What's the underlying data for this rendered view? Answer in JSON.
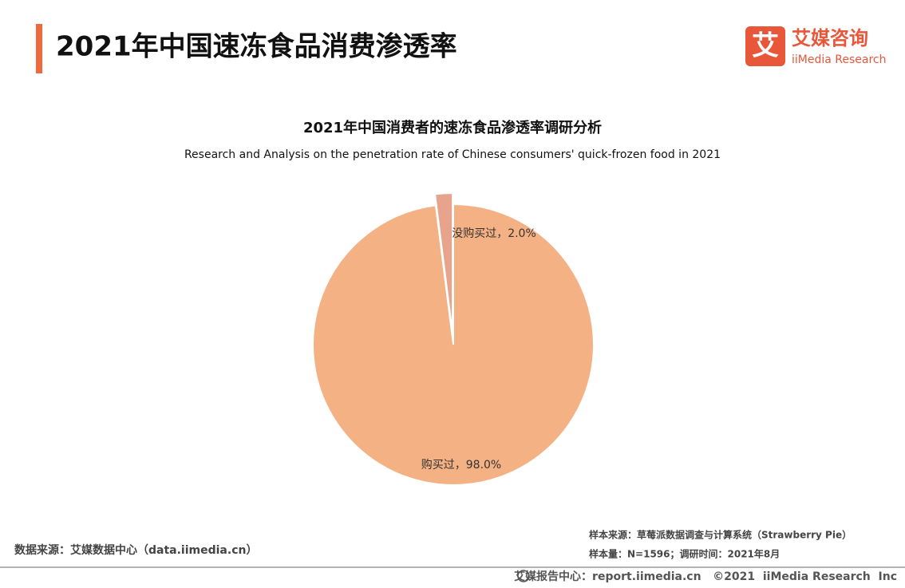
{
  "header": {
    "title": "2021年中国速冻食品消费渗透率",
    "logo_icon": "艾",
    "logo_cn": "艾媒咨询",
    "logo_en": "iiMedia Research"
  },
  "chart_data": {
    "type": "pie",
    "title": "2021年中国消费者的速冻食品渗透率调研分析",
    "subtitle": "Research and Analysis on the penetration rate of Chinese consumers' quick-frozen food in 2021",
    "values": [
      2.0,
      98.0
    ],
    "value_labels": [
      "没购买过，2.0%",
      "购买过，98.0%"
    ],
    "colors": [
      "#e8a38c",
      "#f4b183"
    ]
  },
  "footer": {
    "source": "数据来源：艾媒数据中心（data.iimedia.cn）",
    "sample_source": "样本来源：草莓派数据调查与计算系统（Strawberry Pie）",
    "sample_size": "样本量：N=1596；调研时间：2021年8月",
    "copyright": "艾媒报告中心：report.iimedia.cn   ©2021  iiMedia Research  Inc"
  }
}
